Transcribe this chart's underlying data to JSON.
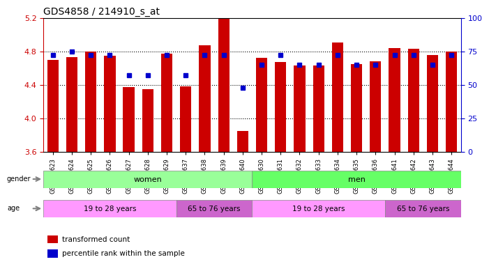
{
  "title": "GDS4858 / 214910_s_at",
  "samples": [
    "GSM948623",
    "GSM948624",
    "GSM948625",
    "GSM948626",
    "GSM948627",
    "GSM948628",
    "GSM948629",
    "GSM948637",
    "GSM948638",
    "GSM948639",
    "GSM948640",
    "GSM948630",
    "GSM948631",
    "GSM948632",
    "GSM948633",
    "GSM948634",
    "GSM948635",
    "GSM948636",
    "GSM948641",
    "GSM948642",
    "GSM948643",
    "GSM948644"
  ],
  "bar_values": [
    4.7,
    4.73,
    4.8,
    4.75,
    4.37,
    4.35,
    4.77,
    4.38,
    4.87,
    5.2,
    3.85,
    4.72,
    4.67,
    4.63,
    4.63,
    4.91,
    4.65,
    4.68,
    4.84,
    4.83,
    4.76,
    4.8
  ],
  "blue_dot_values": [
    72,
    75,
    72,
    72,
    57,
    57,
    72,
    57,
    72,
    72,
    48,
    65,
    72,
    65,
    65,
    72,
    65,
    65,
    72,
    72,
    65,
    72
  ],
  "ymin": 3.6,
  "ymax": 5.2,
  "y2min": 0,
  "y2max": 100,
  "yticks": [
    3.6,
    4.0,
    4.4,
    4.8,
    5.2
  ],
  "y2ticks": [
    0,
    25,
    50,
    75,
    100
  ],
  "bar_color": "#cc0000",
  "dot_color": "#0000cc",
  "gender_groups": [
    {
      "label": "women",
      "start": 0,
      "end": 11,
      "color": "#99ff99"
    },
    {
      "label": "men",
      "start": 11,
      "end": 22,
      "color": "#66ff66"
    }
  ],
  "age_groups": [
    {
      "label": "19 to 28 years",
      "start": 0,
      "end": 7,
      "color": "#ff99ff"
    },
    {
      "label": "65 to 76 years",
      "start": 7,
      "end": 11,
      "color": "#cc66cc"
    },
    {
      "label": "19 to 28 years",
      "start": 11,
      "end": 18,
      "color": "#ff99ff"
    },
    {
      "label": "65 to 76 years",
      "start": 18,
      "end": 22,
      "color": "#cc66cc"
    }
  ],
  "legend_items": [
    {
      "label": "transformed count",
      "color": "#cc0000"
    },
    {
      "label": "percentile rank within the sample",
      "color": "#0000cc"
    }
  ],
  "bg_color": "#ffffff",
  "title_color": "#000000",
  "left_axis_color": "#cc0000",
  "right_axis_color": "#0000cc"
}
